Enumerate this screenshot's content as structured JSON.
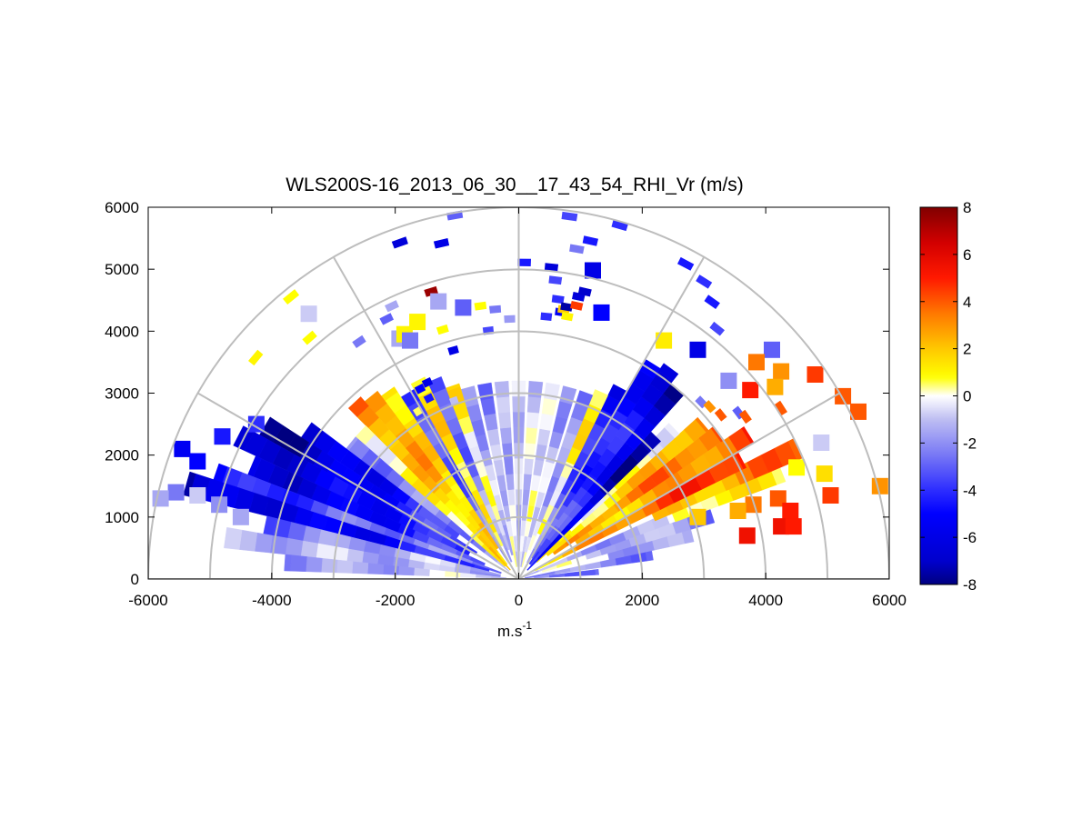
{
  "chart_data": {
    "type": "heatmap",
    "subtype": "polar-rhi-sector",
    "title": "WLS200S-16_2013_06_30__17_43_54_RHI_Vr (m/s)",
    "xlabel": "m.s",
    "xlabel_superscript": "-1",
    "ylabel": "",
    "xlim": [
      -6000,
      6000
    ],
    "ylim": [
      0,
      6000
    ],
    "x_ticks": [
      -6000,
      -4000,
      -2000,
      0,
      2000,
      4000,
      6000
    ],
    "y_ticks": [
      0,
      1000,
      2000,
      3000,
      4000,
      5000,
      6000
    ],
    "x_tick_labels": [
      "-6000",
      "-4000",
      "-2000",
      "0",
      "2000",
      "4000",
      "6000"
    ],
    "y_tick_labels": [
      "0",
      "1000",
      "2000",
      "3000",
      "4000",
      "5000",
      "6000"
    ],
    "polar_grid": {
      "range_rings_m": [
        1000,
        2000,
        3000,
        4000,
        5000,
        6000
      ],
      "elevation_spokes_deg": [
        0,
        30,
        60,
        90,
        120,
        150,
        180
      ]
    },
    "colorbar": {
      "vmin": -8,
      "vmax": 8,
      "ticks": [
        8,
        6,
        4,
        2,
        0,
        -2,
        -4,
        -6,
        -8
      ],
      "tick_labels": [
        "8",
        "6",
        "4",
        "2",
        "0",
        "-2",
        "-4",
        "-6",
        "-8"
      ]
    },
    "sectors": [
      {
        "az_deg": 5,
        "r0": 0,
        "r1": 1300,
        "v": -3.0
      },
      {
        "az_deg": 10,
        "r0": 100,
        "r1": 2200,
        "v": -2.5
      },
      {
        "az_deg": 14,
        "r0": 1500,
        "r1": 2900,
        "v": -1.5
      },
      {
        "az_deg": 18,
        "r0": 400,
        "r1": 3300,
        "v": -1.5
      },
      {
        "az_deg": 22,
        "r0": 2700,
        "r1": 4600,
        "v": 0.8
      },
      {
        "az_deg": 22,
        "r0": 100,
        "r1": 2600,
        "v": -1.8
      },
      {
        "az_deg": 25,
        "r0": 2400,
        "r1": 5000,
        "v": 3.5
      },
      {
        "az_deg": 28,
        "r0": 300,
        "r1": 4100,
        "v": 4.0
      },
      {
        "az_deg": 32,
        "r0": 1100,
        "r1": 4400,
        "v": 3.2
      },
      {
        "az_deg": 36,
        "r0": 700,
        "r1": 4000,
        "v": 3.5
      },
      {
        "az_deg": 40,
        "r0": 600,
        "r1": 3900,
        "v": 2.0
      },
      {
        "az_deg": 44,
        "r0": 400,
        "r1": 3500,
        "v": 0.5
      },
      {
        "az_deg": 46,
        "r0": 200,
        "r1": 3200,
        "v": -7.0
      },
      {
        "az_deg": 50,
        "r0": 300,
        "r1": 4000,
        "v": -5.5
      },
      {
        "az_deg": 54,
        "r0": 300,
        "r1": 4200,
        "v": -5.0
      },
      {
        "az_deg": 58,
        "r0": 400,
        "r1": 4100,
        "v": -4.5
      },
      {
        "az_deg": 62,
        "r0": 300,
        "r1": 3500,
        "v": -4.0
      },
      {
        "az_deg": 66,
        "r0": 800,
        "r1": 3300,
        "v": 0.6
      },
      {
        "az_deg": 70,
        "r0": 500,
        "r1": 3200,
        "v": -1.5
      },
      {
        "az_deg": 75,
        "r0": 200,
        "r1": 3200,
        "v": -1.2
      },
      {
        "az_deg": 80,
        "r0": 200,
        "r1": 3200,
        "v": -0.8
      },
      {
        "az_deg": 85,
        "r0": 200,
        "r1": 3200,
        "v": -1.0
      },
      {
        "az_deg": 90,
        "r0": 200,
        "r1": 3200,
        "v": -0.8
      },
      {
        "az_deg": 95,
        "r0": 200,
        "r1": 3200,
        "v": -1.0
      },
      {
        "az_deg": 100,
        "r0": 200,
        "r1": 3200,
        "v": -1.5
      },
      {
        "az_deg": 105,
        "r0": 400,
        "r1": 3200,
        "v": -2.0
      },
      {
        "az_deg": 109,
        "r0": 500,
        "r1": 3300,
        "v": 0.6
      },
      {
        "az_deg": 113,
        "r0": 300,
        "r1": 3500,
        "v": -2.5
      },
      {
        "az_deg": 117,
        "r0": 600,
        "r1": 3600,
        "v": 1.0
      },
      {
        "az_deg": 121,
        "r0": 300,
        "r1": 3500,
        "v": -3.0
      },
      {
        "az_deg": 125,
        "r0": 600,
        "r1": 3700,
        "v": 1.8
      },
      {
        "az_deg": 129,
        "r0": 300,
        "r1": 3800,
        "v": 2.3
      },
      {
        "az_deg": 133,
        "r0": 200,
        "r1": 3900,
        "v": 2.6
      },
      {
        "az_deg": 137,
        "r0": 300,
        "r1": 3500,
        "v": 0.5
      },
      {
        "az_deg": 141,
        "r0": 200,
        "r1": 3500,
        "v": -2.5
      },
      {
        "az_deg": 145,
        "r0": 1200,
        "r1": 4200,
        "v": -5.5
      },
      {
        "az_deg": 149,
        "r0": 800,
        "r1": 4800,
        "v": -6.0
      },
      {
        "az_deg": 153,
        "r0": 900,
        "r1": 5100,
        "v": -6.3
      },
      {
        "az_deg": 157,
        "r0": 600,
        "r1": 4700,
        "v": -5.5
      },
      {
        "az_deg": 161,
        "r0": 300,
        "r1": 5200,
        "v": -3.5
      },
      {
        "az_deg": 164,
        "r0": 500,
        "r1": 5600,
        "v": -6.0
      },
      {
        "az_deg": 168,
        "r0": 300,
        "r1": 4200,
        "v": -2.0
      },
      {
        "az_deg": 172,
        "r0": 300,
        "r1": 4800,
        "v": -1.5
      },
      {
        "az_deg": 176,
        "r0": 200,
        "r1": 3800,
        "v": -1.2
      }
    ],
    "cells": [
      {
        "x": -3400,
        "y": 4280,
        "v": -0.8
      },
      {
        "x": -1930,
        "y": 3880,
        "v": -1.5
      },
      {
        "x": 1200,
        "y": 4980,
        "v": -6.0
      },
      {
        "x": 1340,
        "y": 4300,
        "v": -5.0
      },
      {
        "x": -1640,
        "y": 4150,
        "v": 1.0
      },
      {
        "x": -1850,
        "y": 3950,
        "v": 1.0
      },
      {
        "x": -1760,
        "y": 3850,
        "v": -2.5
      },
      {
        "x": -1300,
        "y": 4480,
        "v": -1.5
      },
      {
        "x": -900,
        "y": 4380,
        "v": -3.0
      },
      {
        "x": 2350,
        "y": 3850,
        "v": 1.2
      },
      {
        "x": 2900,
        "y": 3700,
        "v": -6.0
      },
      {
        "x": 3400,
        "y": 3200,
        "v": -2.0
      },
      {
        "x": 4100,
        "y": 3700,
        "v": -3.0
      },
      {
        "x": 3850,
        "y": 3500,
        "v": 3.5
      },
      {
        "x": 4250,
        "y": 3350,
        "v": 3.0
      },
      {
        "x": 4150,
        "y": 3100,
        "v": 2.5
      },
      {
        "x": 3750,
        "y": 3050,
        "v": 5.0
      },
      {
        "x": 4800,
        "y": 3300,
        "v": 4.5
      },
      {
        "x": 5250,
        "y": 2950,
        "v": 4.0
      },
      {
        "x": 5500,
        "y": 2700,
        "v": 4.0
      },
      {
        "x": 4900,
        "y": 2200,
        "v": -0.8
      },
      {
        "x": 4500,
        "y": 1800,
        "v": 0.8
      },
      {
        "x": 4950,
        "y": 1700,
        "v": 1.5
      },
      {
        "x": 5050,
        "y": 1350,
        "v": 4.5
      },
      {
        "x": 5850,
        "y": 1500,
        "v": 3.0
      },
      {
        "x": 4200,
        "y": 1300,
        "v": 4.0
      },
      {
        "x": 4400,
        "y": 1100,
        "v": 5.0
      },
      {
        "x": 3800,
        "y": 1200,
        "v": 3.5
      },
      {
        "x": 3700,
        "y": 700,
        "v": 5.5
      },
      {
        "x": 4250,
        "y": 850,
        "v": 5.5
      },
      {
        "x": 4450,
        "y": 850,
        "v": 5.0
      },
      {
        "x": 3550,
        "y": 1100,
        "v": 2.5
      },
      {
        "x": 2900,
        "y": 1000,
        "v": 2.0
      },
      {
        "x": -5450,
        "y": 2100,
        "v": -5.5
      },
      {
        "x": -5200,
        "y": 1900,
        "v": -5.0
      },
      {
        "x": -4800,
        "y": 2300,
        "v": -4.5
      },
      {
        "x": -4250,
        "y": 2500,
        "v": -4.0
      },
      {
        "x": -5550,
        "y": 1400,
        "v": -2.5
      },
      {
        "x": -5200,
        "y": 1350,
        "v": -0.8
      },
      {
        "x": -4850,
        "y": 1200,
        "v": -2.0
      },
      {
        "x": -4500,
        "y": 1000,
        "v": -1.5
      },
      {
        "x": -5800,
        "y": 1300,
        "v": -1.5
      }
    ],
    "sparse_arcs": [
      {
        "az_deg": 121,
        "r": 3100,
        "v": 0.5
      },
      {
        "az_deg": 116.5,
        "r": 3200,
        "v": -4.5
      },
      {
        "az_deg": 117.5,
        "r": 3400,
        "v": -5.0
      },
      {
        "az_deg": 115,
        "r": 3440,
        "v": -6.0
      },
      {
        "az_deg": 110,
        "r": 3000,
        "v": -1.0
      },
      {
        "az_deg": 98,
        "r": 4390,
        "v": 0.8
      },
      {
        "az_deg": 102,
        "r": 4400,
        "v": 0.8
      },
      {
        "az_deg": 107,
        "r": 4150,
        "v": 0.8
      },
      {
        "az_deg": 124,
        "r": 4560,
        "v": -2.5
      },
      {
        "az_deg": 117,
        "r": 4650,
        "v": -3.0
      },
      {
        "az_deg": 115,
        "r": 4800,
        "v": -1.5
      },
      {
        "az_deg": 109.5,
        "r": 5700,
        "v": -6.5
      },
      {
        "az_deg": 107,
        "r": 4790,
        "v": 7.5
      },
      {
        "az_deg": 100,
        "r": 5900,
        "v": -3.0
      },
      {
        "az_deg": 103,
        "r": 5500,
        "v": -6.0
      },
      {
        "az_deg": 131,
        "r": 5100,
        "v": 0.8
      },
      {
        "az_deg": 140,
        "r": 5500,
        "v": 1.0
      },
      {
        "az_deg": 129,
        "r": 5800,
        "v": 0.8
      },
      {
        "az_deg": 106,
        "r": 3780,
        "v": -6.0
      },
      {
        "az_deg": 97,
        "r": 3980,
        "v": -3.5
      },
      {
        "az_deg": 95,
        "r": 4310,
        "v": -2.5
      },
      {
        "az_deg": 92,
        "r": 4140,
        "v": -1.8
      },
      {
        "az_deg": 89,
        "r": 5050,
        "v": -4.5
      },
      {
        "az_deg": 84,
        "r": 5000,
        "v": -6.5
      },
      {
        "az_deg": 82,
        "r": 5850,
        "v": -3.5
      },
      {
        "az_deg": 78,
        "r": 5520,
        "v": -4.5
      },
      {
        "az_deg": 80,
        "r": 5350,
        "v": -2.5
      },
      {
        "az_deg": 74,
        "r": 5880,
        "v": -4.0
      },
      {
        "az_deg": 84,
        "r": 4200,
        "v": -4.0
      },
      {
        "az_deg": 82,
        "r": 4500,
        "v": -4.0
      },
      {
        "az_deg": 81,
        "r": 4300,
        "v": -5.5
      },
      {
        "az_deg": 80.5,
        "r": 4350,
        "v": 2.0
      },
      {
        "az_deg": 79.5,
        "r": 4250,
        "v": 1.0
      },
      {
        "az_deg": 80,
        "r": 4400,
        "v": -7.5
      },
      {
        "az_deg": 78,
        "r": 4450,
        "v": 4.5
      },
      {
        "az_deg": 78,
        "r": 4600,
        "v": -6.5
      },
      {
        "az_deg": 77,
        "r": 4700,
        "v": -7.0
      },
      {
        "az_deg": 83,
        "r": 4800,
        "v": -3.5
      },
      {
        "az_deg": 62,
        "r": 5700,
        "v": -4.5
      },
      {
        "az_deg": 58,
        "r": 5600,
        "v": -4.0
      },
      {
        "az_deg": 55,
        "r": 5400,
        "v": -4.5
      },
      {
        "az_deg": 51.5,
        "r": 5100,
        "v": -3.5
      },
      {
        "az_deg": 44,
        "r": 4050,
        "v": -2.5
      },
      {
        "az_deg": 42,
        "r": 4100,
        "v": 3.0
      },
      {
        "az_deg": 39,
        "r": 4150,
        "v": 4.0
      },
      {
        "az_deg": 37,
        "r": 4400,
        "v": -3.0
      },
      {
        "az_deg": 35.5,
        "r": 4450,
        "v": 4.0
      },
      {
        "az_deg": 33,
        "r": 5000,
        "v": 4.0
      }
    ]
  }
}
